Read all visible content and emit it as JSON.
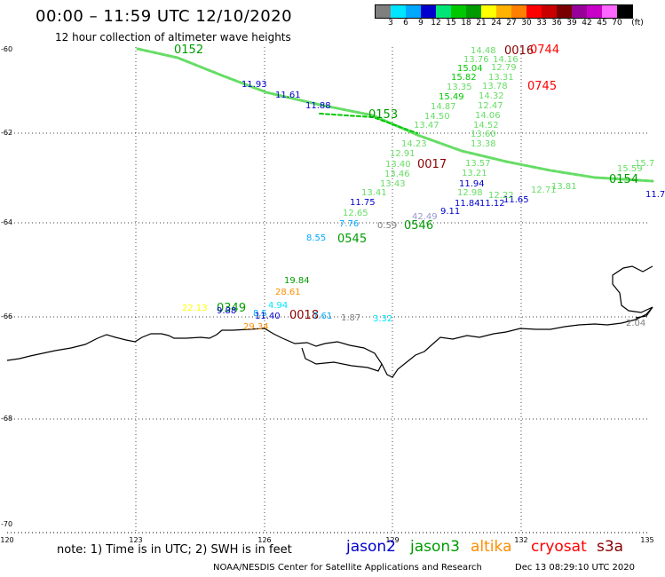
{
  "title": "00:00 – 11:59 UTC 12/10/2020",
  "subtitle": "12 hour collection of altimeter wave heights",
  "colorbar": {
    "unit": "(ft)",
    "colors": [
      "#7f7f7f",
      "#00e5ff",
      "#00a8ff",
      "#0000cd",
      "#00e676",
      "#00c800",
      "#009b00",
      "#ffff00",
      "#ffb300",
      "#ff8000",
      "#ff0000",
      "#c80000",
      "#7a0000",
      "#990099",
      "#c800c8",
      "#ff66ff",
      "#000000"
    ],
    "labels": [
      "3",
      "6",
      "9",
      "12",
      "15",
      "18",
      "21",
      "24",
      "27",
      "30",
      "33",
      "36",
      "39",
      "42",
      "45",
      "70"
    ]
  },
  "axes": {
    "lat_labels": [
      "-60",
      "-62",
      "-64",
      "-66",
      "-68",
      "-70"
    ],
    "lon_labels": [
      "120",
      "123",
      "126",
      "129",
      "132",
      "135"
    ]
  },
  "note": "note: 1) Time is in UTC; 2) SWH is in feet",
  "legend": [
    {
      "name": "jason2",
      "color": "#0000cd"
    },
    {
      "name": "jason3",
      "color": "#009b00"
    },
    {
      "name": "altika",
      "color": "#ff8c00"
    },
    {
      "name": "cryosat",
      "color": "#ff0000"
    },
    {
      "name": "s3a",
      "color": "#8b0000"
    }
  ],
  "credit": "NOAA/NESDIS Center for Satellite Applications and Research",
  "credit_time": "Dec 13 08:29:10 UTC 2020",
  "times": [
    {
      "text": "0152",
      "color": "#009b00"
    },
    {
      "text": "0153",
      "color": "#009b00"
    },
    {
      "text": "0016",
      "color": "#8b0000"
    },
    {
      "text": "0744",
      "color": "#ff0000"
    },
    {
      "text": "0745",
      "color": "#ff0000"
    },
    {
      "text": "0017",
      "color": "#8b0000"
    },
    {
      "text": "0154",
      "color": "#009b00"
    },
    {
      "text": "0545",
      "color": "#009b00"
    },
    {
      "text": "0546",
      "color": "#009b00"
    },
    {
      "text": "0349",
      "color": "#009b00"
    },
    {
      "text": "0018",
      "color": "#8b0000"
    }
  ],
  "wave_labels": [
    {
      "v": "11.93",
      "c": "#0000cd"
    },
    {
      "v": "11.61",
      "c": "#0000cd"
    },
    {
      "v": "11.88",
      "c": "#0000cd"
    },
    {
      "v": "14.48",
      "c": "#66dd66"
    },
    {
      "v": "13.76",
      "c": "#66dd66"
    },
    {
      "v": "14.16",
      "c": "#66dd66"
    },
    {
      "v": "15.04",
      "c": "#00c800"
    },
    {
      "v": "12.79",
      "c": "#66dd66"
    },
    {
      "v": "15.82",
      "c": "#00c800"
    },
    {
      "v": "13.31",
      "c": "#66dd66"
    },
    {
      "v": "13.35",
      "c": "#66dd66"
    },
    {
      "v": "13.78",
      "c": "#66dd66"
    },
    {
      "v": "15.49",
      "c": "#00c800"
    },
    {
      "v": "14.32",
      "c": "#66dd66"
    },
    {
      "v": "14.87",
      "c": "#66dd66"
    },
    {
      "v": "12.47",
      "c": "#66dd66"
    },
    {
      "v": "14.50",
      "c": "#66dd66"
    },
    {
      "v": "14.06",
      "c": "#66dd66"
    },
    {
      "v": "13.47",
      "c": "#66dd66"
    },
    {
      "v": "14.52",
      "c": "#66dd66"
    },
    {
      "v": "13.60",
      "c": "#66dd66"
    },
    {
      "v": "14.23",
      "c": "#66dd66"
    },
    {
      "v": "13.38",
      "c": "#66dd66"
    },
    {
      "v": "12.91",
      "c": "#66dd66"
    },
    {
      "v": "13.40",
      "c": "#66dd66"
    },
    {
      "v": "13.57",
      "c": "#66dd66"
    },
    {
      "v": "13.46",
      "c": "#66dd66"
    },
    {
      "v": "13.21",
      "c": "#66dd66"
    },
    {
      "v": "13.43",
      "c": "#66dd66"
    },
    {
      "v": "11.94",
      "c": "#0000cd"
    },
    {
      "v": "13.41",
      "c": "#66dd66"
    },
    {
      "v": "12.98",
      "c": "#66dd66"
    },
    {
      "v": "11.75",
      "c": "#0000cd"
    },
    {
      "v": "11.84",
      "c": "#0000cd"
    },
    {
      "v": "11.12",
      "c": "#0000cd"
    },
    {
      "v": "11.65",
      "c": "#0000cd"
    },
    {
      "v": "12.22",
      "c": "#66dd66"
    },
    {
      "v": "12.71",
      "c": "#66dd66"
    },
    {
      "v": "13.81",
      "c": "#66dd66"
    },
    {
      "v": "9.11",
      "c": "#0000cd"
    },
    {
      "v": "12.65",
      "c": "#66dd66"
    },
    {
      "v": "42.49",
      "c": "#9999cc"
    },
    {
      "v": "7.76",
      "c": "#00a8ff"
    },
    {
      "v": "0.59",
      "c": "#7f7f7f"
    },
    {
      "v": "8.55",
      "c": "#00a8ff"
    },
    {
      "v": "15.59",
      "c": "#66dd66"
    },
    {
      "v": "15.7",
      "c": "#66dd66"
    },
    {
      "v": "11.7",
      "c": "#0000cd"
    },
    {
      "v": "19.84",
      "c": "#009b00"
    },
    {
      "v": "28.61",
      "c": "#ff8c00"
    },
    {
      "v": "4.94",
      "c": "#00e5ff"
    },
    {
      "v": "22.13",
      "c": "#ffff00"
    },
    {
      "v": "9.88",
      "c": "#0000cd"
    },
    {
      "v": "8.5",
      "c": "#00a8ff"
    },
    {
      "v": "11.40",
      "c": "#0000cd"
    },
    {
      "v": "7.61",
      "c": "#00a8ff"
    },
    {
      "v": "1.87",
      "c": "#7f7f7f"
    },
    {
      "v": "3.32",
      "c": "#00e5ff"
    },
    {
      "v": "29.34",
      "c": "#ff8c00"
    },
    {
      "v": "2.04",
      "c": "#7f7f7f"
    }
  ]
}
